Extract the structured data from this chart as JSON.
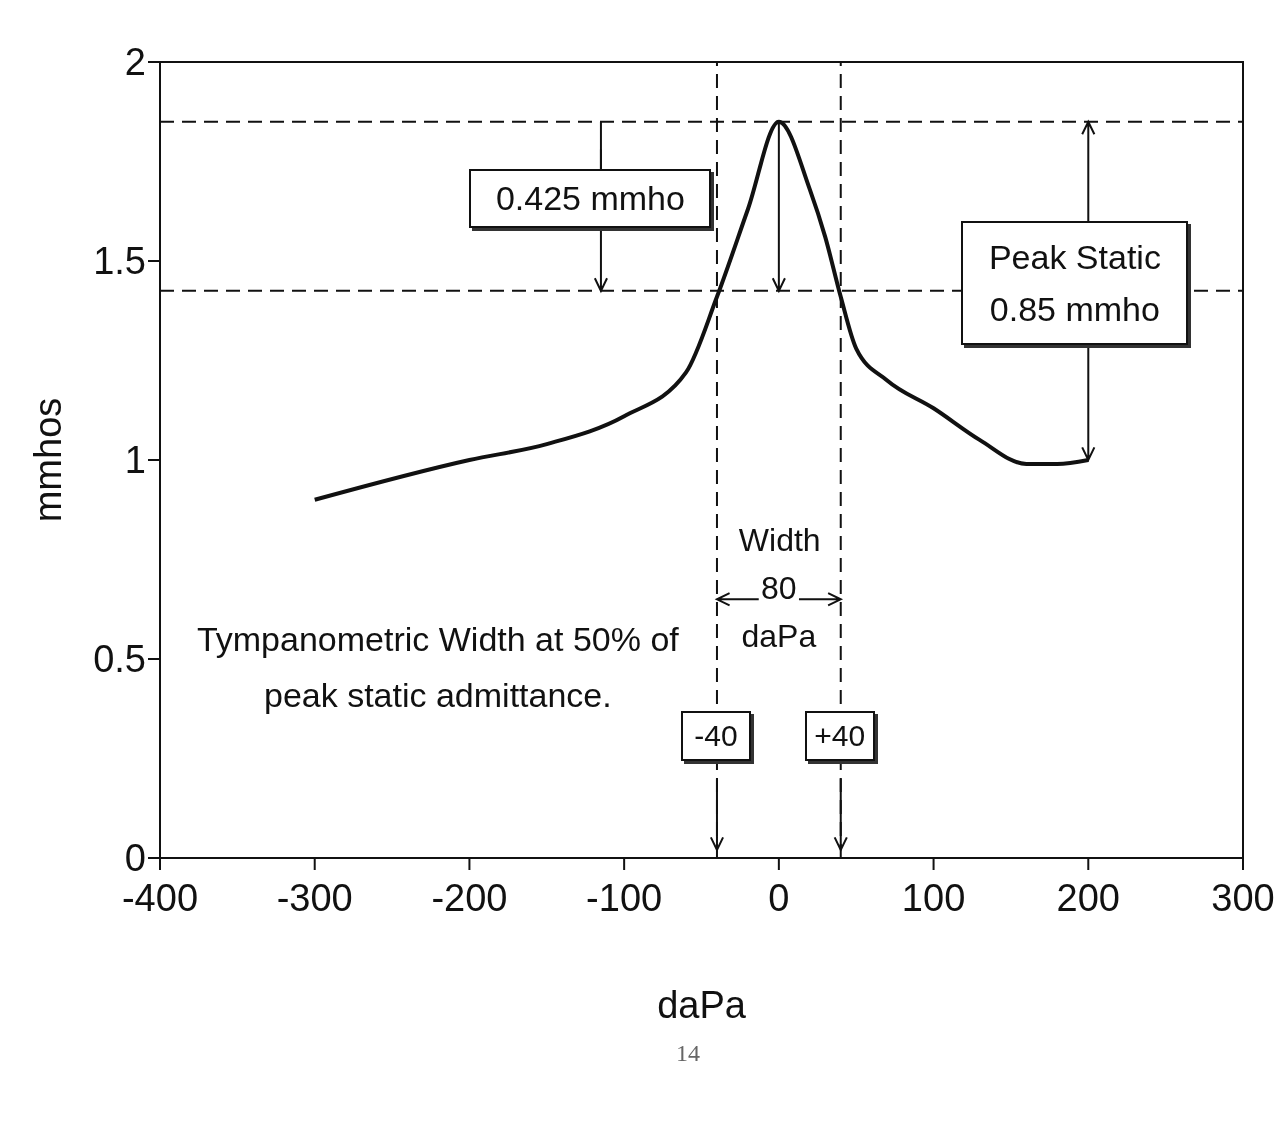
{
  "chart_data": {
    "type": "line",
    "xlabel": "daPa",
    "ylabel": "mmhos",
    "xlim": [
      -400,
      300
    ],
    "xticks": [
      -400,
      -300,
      -200,
      -100,
      0,
      100,
      200,
      300
    ],
    "ylim": [
      0,
      2
    ],
    "yticks": [
      0,
      0.5,
      1,
      1.5,
      2
    ],
    "x": [
      -300,
      -200,
      -150,
      -100,
      -60,
      -40,
      -20,
      0,
      20,
      30,
      40,
      50,
      70,
      100,
      130,
      160,
      180,
      200
    ],
    "series": [
      {
        "color": "#111111",
        "values": [
          0.9,
          1.0,
          1.04,
          1.11,
          1.22,
          1.41,
          1.63,
          1.85,
          1.68,
          1.56,
          1.41,
          1.28,
          1.2,
          1.13,
          1.05,
          0.99,
          0.99,
          1.0
        ]
      }
    ],
    "marker": "none",
    "line_style": "solid",
    "grid": false,
    "legend": false,
    "ref_lines": [
      {
        "axis": "y",
        "value": 1.85,
        "line_style": "dashed",
        "color": "#111111"
      },
      {
        "axis": "y",
        "value": 1.425,
        "line_style": "dashed",
        "color": "#111111"
      },
      {
        "axis": "x",
        "value": -40,
        "label": "-40",
        "line_style": "dashed",
        "color": "#111111"
      },
      {
        "axis": "x",
        "value": 40,
        "label": "+40",
        "line_style": "dashed",
        "color": "#111111"
      }
    ],
    "annotations": [
      {
        "text": "0.425 mmho",
        "x": -115,
        "y": 1.425
      },
      "Peak Static 0.85 mmho",
      "Width 80 daPa",
      "Tympanometric Width at 50% of peak static admittance.",
      "14"
    ]
  }
}
